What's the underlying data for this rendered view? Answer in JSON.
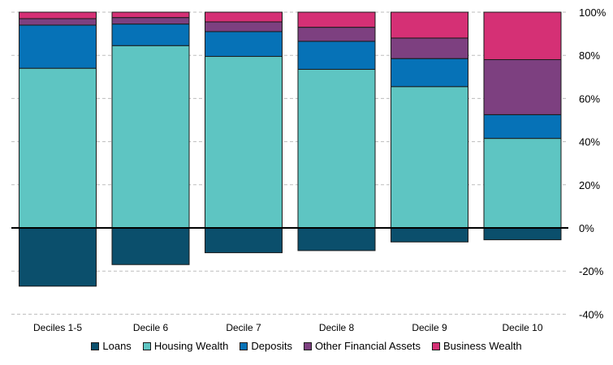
{
  "chart_data": {
    "type": "bar",
    "stacked": true,
    "categories": [
      "Deciles 1-5",
      "Decile 6",
      "Decile 7",
      "Decile 8",
      "Decile 9",
      "Decile 10"
    ],
    "series": [
      {
        "name": "Loans",
        "color": "#0b4f6c",
        "values": [
          -27,
          -17,
          -11.5,
          -10.5,
          -6.5,
          -5.5
        ]
      },
      {
        "name": "Housing Wealth",
        "color": "#5ec5c2",
        "values": [
          74,
          84.5,
          79.5,
          73.5,
          65.5,
          41.5
        ]
      },
      {
        "name": "Deposits",
        "color": "#0672b7",
        "values": [
          20,
          10,
          11.5,
          13,
          13,
          11
        ]
      },
      {
        "name": "Other Financial Assets",
        "color": "#7d4080",
        "values": [
          3,
          3,
          4.5,
          6.5,
          9.5,
          25.5
        ]
      },
      {
        "name": "Business Wealth",
        "color": "#d53075",
        "values": [
          3,
          2.5,
          4.5,
          7,
          12,
          22
        ]
      }
    ],
    "yticks": [
      "100%",
      "80%",
      "60%",
      "40%",
      "20%",
      "0%",
      "-20%",
      "-40%"
    ],
    "ylim": [
      -40,
      100
    ],
    "grid": true,
    "yaxis_position": "right",
    "legend_position": "bottom",
    "title": "",
    "xlabel": "",
    "ylabel": ""
  }
}
